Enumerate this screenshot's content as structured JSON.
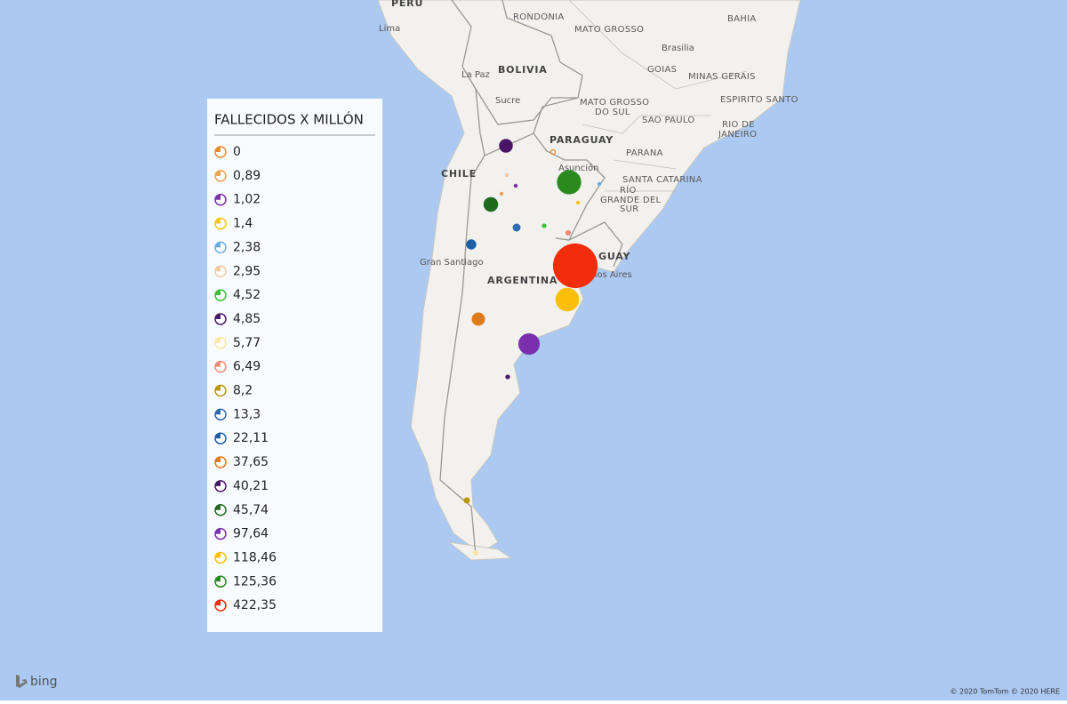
{
  "legend": {
    "title": "FALLECIDOS X MILLÓN",
    "items": [
      {
        "label": "0",
        "value": 0,
        "color": "#e8892b"
      },
      {
        "label": "0,89",
        "value": 0.89,
        "color": "#eda24e"
      },
      {
        "label": "1,02",
        "value": 1.02,
        "color": "#7b2fa8"
      },
      {
        "label": "1,4",
        "value": 1.4,
        "color": "#f5c518"
      },
      {
        "label": "2,38",
        "value": 2.38,
        "color": "#6aaee0"
      },
      {
        "label": "2,95",
        "value": 2.95,
        "color": "#f4c8a0"
      },
      {
        "label": "4,52",
        "value": 4.52,
        "color": "#3cbf3c"
      },
      {
        "label": "4,85",
        "value": 4.85,
        "color": "#4b1a6b"
      },
      {
        "label": "5,77",
        "value": 5.77,
        "color": "#fbe79b"
      },
      {
        "label": "6,49",
        "value": 6.49,
        "color": "#f08a7a"
      },
      {
        "label": "8,2",
        "value": 8.2,
        "color": "#b8960e"
      },
      {
        "label": "13,3",
        "value": 13.3,
        "color": "#2e6bb0"
      },
      {
        "label": "22,11",
        "value": 22.11,
        "color": "#1f5fa6"
      },
      {
        "label": "37,65",
        "value": 37.65,
        "color": "#e07b1a"
      },
      {
        "label": "40,21",
        "value": 40.21,
        "color": "#4a1466"
      },
      {
        "label": "45,74",
        "value": 45.74,
        "color": "#1e6b1e"
      },
      {
        "label": "97,64",
        "value": 97.64,
        "color": "#7b2fae"
      },
      {
        "label": "118,46",
        "value": 118.46,
        "color": "#fbbf0a"
      },
      {
        "label": "125,36",
        "value": 125.36,
        "color": "#2a8a1e"
      },
      {
        "label": "422,35",
        "value": 422.35,
        "color": "#f22d0c"
      }
    ]
  },
  "map": {
    "labels": [
      "PERU",
      "Lima",
      "RONDONIA",
      "MATO GROSSO",
      "BAHIA",
      "Brasilia",
      "GOIAS",
      "MINAS GERAIS",
      "BOLIVIA",
      "La Paz",
      "Sucre",
      "MATO GROSSO",
      "DO SUL",
      "SAO PAULO",
      "ESPIRITO SANTO",
      "RIO DE",
      "JANEIRO",
      "PARAGUAY",
      "Asunción",
      "PARANA",
      "SANTA CATARINA",
      "RÍO",
      "GRANDE DEL",
      "SUR",
      "CHILE",
      "Gran Santiago",
      "ARGENTINA",
      "GUAY",
      "nos Aires"
    ],
    "logo": "bing",
    "copyright": "© 2020 TomTom © 2020 HERE"
  }
}
